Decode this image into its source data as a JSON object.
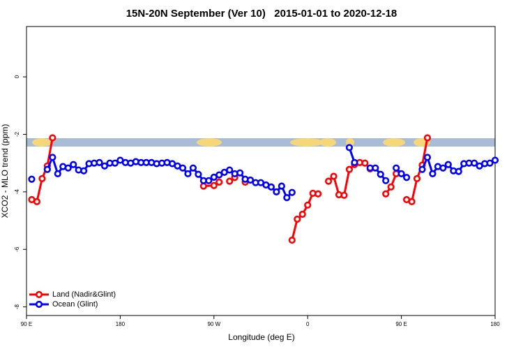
{
  "chart_data": {
    "type": "line",
    "title": "15N-20N September (Ver 10)   2015-01-01 to 2020-12-18",
    "x_label": "Longitude (deg E)",
    "y_label": "XCO2 - MLO trend (ppm)",
    "xlim": [
      90,
      540
    ],
    "ylim": [
      -8.3,
      1.75
    ],
    "xticks": [
      {
        "value": 90,
        "label": "90 E"
      },
      180,
      {
        "value": 270,
        "label": "90 W"
      },
      {
        "value": 360,
        "label": "0"
      },
      {
        "value": 450,
        "label": "90 E"
      },
      {
        "value": 540,
        "label": "180"
      }
    ],
    "yticks": [
      0,
      -2,
      -4,
      -6,
      -8
    ],
    "legend": "bottom-left",
    "series": [
      {
        "name": "Land (Nadir&Glint)",
        "color": "#ff0000",
        "x": [
          95,
          100,
          105,
          110,
          115,
          null,
          260,
          270,
          275,
          null,
          285,
          290,
          null,
          300,
          null,
          345,
          350,
          355,
          360,
          365,
          370,
          null,
          380,
          385,
          390,
          395,
          400,
          405,
          410,
          415,
          420,
          null,
          435,
          440,
          445,
          null,
          455,
          460,
          465,
          470,
          475
        ],
        "values": [
          -4.27,
          -4.34,
          -3.54,
          -3.1,
          -2.12,
          null,
          -3.8,
          -3.78,
          -3.66,
          null,
          -3.63,
          -3.5,
          null,
          -3.66,
          null,
          -5.68,
          -4.95,
          -4.78,
          -4.46,
          -4.05,
          -4.07,
          null,
          -3.63,
          -3.46,
          -4.1,
          -4.12,
          -3.22,
          -3.05,
          -2.98,
          -3.0,
          -3.2,
          null,
          -4.07,
          -3.83,
          -3.37,
          null,
          -4.27,
          -4.34,
          -3.54,
          -3.07,
          -2.12
        ]
      },
      {
        "name": "Ocean (Glint)",
        "color": "#0000ff",
        "x": [
          95,
          null,
          110,
          115,
          120,
          125,
          130,
          135,
          140,
          145,
          150,
          155,
          160,
          165,
          170,
          175,
          180,
          185,
          190,
          195,
          200,
          205,
          210,
          215,
          220,
          225,
          230,
          235,
          240,
          245,
          250,
          255,
          260,
          265,
          270,
          275,
          280,
          285,
          290,
          295,
          300,
          305,
          310,
          315,
          320,
          325,
          330,
          335,
          340,
          345,
          null,
          400,
          405,
          null,
          420,
          425,
          430,
          435,
          null,
          445,
          450,
          455,
          null,
          470,
          475,
          480,
          485,
          490,
          495,
          500,
          505,
          510,
          515,
          520,
          525,
          530,
          535,
          540
        ],
        "values": [
          -3.56,
          null,
          -3.22,
          -2.8,
          -3.37,
          -3.12,
          -3.17,
          -3.05,
          -3.24,
          -3.27,
          -3.02,
          -3.0,
          -2.98,
          -3.1,
          -3.0,
          -3.0,
          -2.9,
          -2.98,
          -3.0,
          -2.95,
          -2.98,
          -2.98,
          -2.98,
          -3.02,
          -3.0,
          -2.98,
          -3.02,
          -3.1,
          -3.17,
          -3.37,
          -3.17,
          -3.39,
          -3.61,
          -3.61,
          -3.49,
          -3.41,
          -3.32,
          -3.24,
          -3.37,
          -3.34,
          -3.56,
          -3.59,
          -3.68,
          -3.68,
          -3.76,
          -3.83,
          -4.0,
          -3.8,
          -4.2,
          -4.02,
          null,
          -2.46,
          -2.98,
          null,
          -3.17,
          -3.17,
          -3.39,
          -3.61,
          null,
          -3.17,
          -3.37,
          -3.5,
          null,
          -3.22,
          -2.8,
          -3.37,
          -3.12,
          -3.17,
          -3.05,
          -3.27,
          -3.29,
          -3.02,
          -3.0,
          -3.0,
          -3.1,
          -3.02,
          -3.0,
          -2.9
        ]
      }
    ]
  }
}
